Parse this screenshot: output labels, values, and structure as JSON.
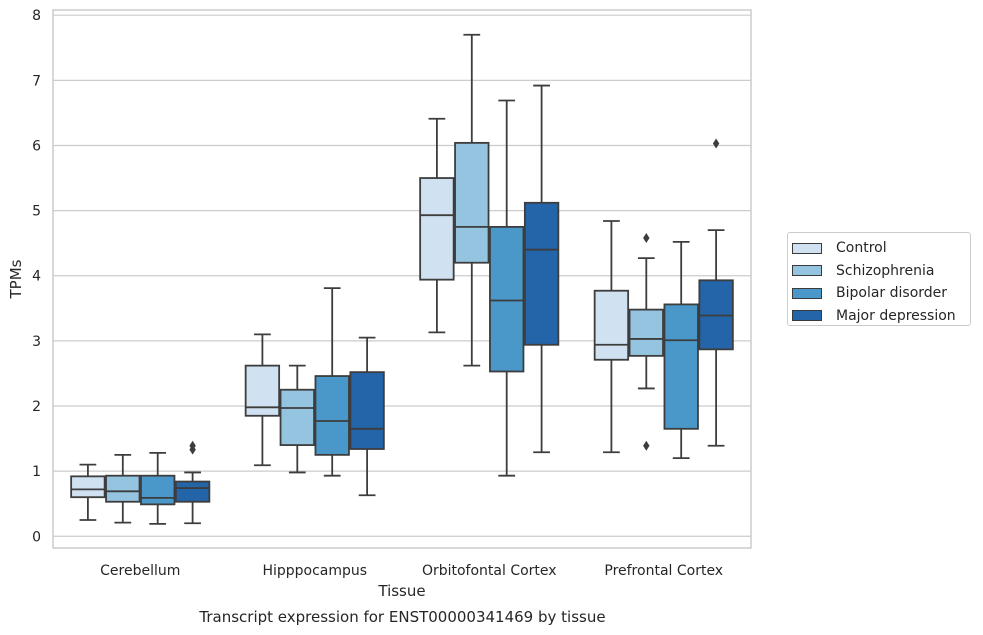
{
  "chart_data": {
    "type": "box",
    "xlabel": "Tissue",
    "ylabel": "TPMs",
    "ylim": [
      -0.18,
      8.08
    ],
    "yticks": [
      0,
      1,
      2,
      3,
      4,
      5,
      6,
      7,
      8
    ],
    "grid": "horizontal",
    "legend_position": "right",
    "categories": [
      "Cerebellum",
      "Hipppocampus",
      "Orbitofontal Cortex",
      "Prefrontal Cortex"
    ],
    "series": [
      {
        "name": "Control",
        "color": "#d0e1f2",
        "boxes": [
          {
            "whislo": 0.25,
            "q1": 0.6,
            "med": 0.72,
            "q3": 0.92,
            "whishi": 1.1,
            "fliers": []
          },
          {
            "whislo": 1.09,
            "q1": 1.85,
            "med": 1.98,
            "q3": 2.62,
            "whishi": 3.1,
            "fliers": []
          },
          {
            "whislo": 3.13,
            "q1": 3.94,
            "med": 4.93,
            "q3": 5.5,
            "whishi": 6.41,
            "fliers": []
          },
          {
            "whislo": 1.29,
            "q1": 2.71,
            "med": 2.94,
            "q3": 3.77,
            "whishi": 4.84,
            "fliers": []
          }
        ]
      },
      {
        "name": "Schizophrenia",
        "color": "#94c4df",
        "boxes": [
          {
            "whislo": 0.21,
            "q1": 0.53,
            "med": 0.69,
            "q3": 0.93,
            "whishi": 1.25,
            "fliers": []
          },
          {
            "whislo": 0.98,
            "q1": 1.4,
            "med": 1.97,
            "q3": 2.25,
            "whishi": 2.62,
            "fliers": []
          },
          {
            "whislo": 2.62,
            "q1": 4.2,
            "med": 4.75,
            "q3": 6.04,
            "whishi": 7.7,
            "fliers": []
          },
          {
            "whislo": 2.27,
            "q1": 2.77,
            "med": 3.03,
            "q3": 3.48,
            "whishi": 4.27,
            "fliers": [
              4.58,
              1.39
            ]
          }
        ]
      },
      {
        "name": "Bipolar disorder",
        "color": "#4a98c9",
        "boxes": [
          {
            "whislo": 0.19,
            "q1": 0.49,
            "med": 0.59,
            "q3": 0.93,
            "whishi": 1.28,
            "fliers": []
          },
          {
            "whislo": 0.93,
            "q1": 1.25,
            "med": 1.77,
            "q3": 2.46,
            "whishi": 3.81,
            "fliers": []
          },
          {
            "whislo": 0.93,
            "q1": 2.53,
            "med": 3.62,
            "q3": 4.75,
            "whishi": 6.69,
            "fliers": []
          },
          {
            "whislo": 1.2,
            "q1": 1.65,
            "med": 3.01,
            "q3": 3.56,
            "whishi": 4.52,
            "fliers": []
          }
        ]
      },
      {
        "name": "Major depression",
        "color": "#2464a8",
        "boxes": [
          {
            "whislo": 0.2,
            "q1": 0.53,
            "med": 0.74,
            "q3": 0.84,
            "whishi": 0.98,
            "fliers": [
              1.39,
              1.33
            ]
          },
          {
            "whislo": 0.63,
            "q1": 1.34,
            "med": 1.65,
            "q3": 2.52,
            "whishi": 3.05,
            "fliers": []
          },
          {
            "whislo": 1.29,
            "q1": 2.94,
            "med": 4.4,
            "q3": 5.12,
            "whishi": 6.92,
            "fliers": []
          },
          {
            "whislo": 1.39,
            "q1": 2.87,
            "med": 3.39,
            "q3": 3.93,
            "whishi": 4.7,
            "fliers": [
              6.03
            ]
          }
        ]
      }
    ]
  },
  "caption": "Transcript expression for ENST00000341469 by tissue"
}
